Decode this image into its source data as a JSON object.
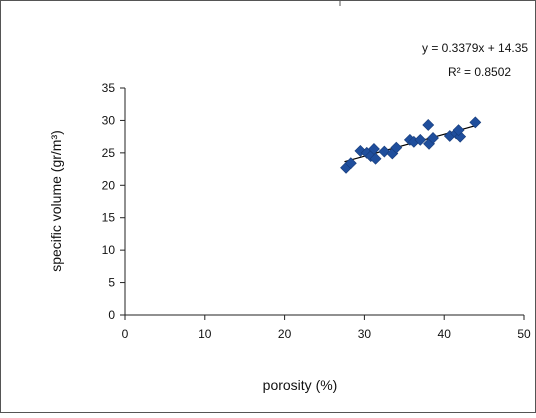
{
  "chart_data": {
    "type": "scatter",
    "title": "",
    "xlabel": "porosity (%)",
    "ylabel": "specific volume (gr/m³)",
    "xlim": [
      0,
      50
    ],
    "ylim": [
      0,
      35
    ],
    "x_ticks": [
      0,
      10,
      20,
      30,
      40,
      50
    ],
    "y_ticks": [
      0,
      5,
      10,
      15,
      20,
      25,
      30,
      35
    ],
    "grid": false,
    "legend": "none",
    "marker": "diamond",
    "marker_color": "#1F4E9C",
    "trendline_color": "#000000",
    "equation_label": "y = 0.3379x + 14.35",
    "r2_label": "R² = 0.8502",
    "trendline": {
      "slope": 0.3379,
      "intercept": 14.35,
      "x_range": [
        27.5,
        44
      ]
    },
    "points": [
      {
        "x": 27.7,
        "y": 22.7
      },
      {
        "x": 28.3,
        "y": 23.4
      },
      {
        "x": 29.5,
        "y": 25.3
      },
      {
        "x": 30.3,
        "y": 25.0
      },
      {
        "x": 30.8,
        "y": 24.5
      },
      {
        "x": 31.2,
        "y": 25.6
      },
      {
        "x": 31.4,
        "y": 24.1
      },
      {
        "x": 32.5,
        "y": 25.2
      },
      {
        "x": 33.5,
        "y": 24.9
      },
      {
        "x": 34.0,
        "y": 25.8
      },
      {
        "x": 35.7,
        "y": 27.0
      },
      {
        "x": 36.2,
        "y": 26.7
      },
      {
        "x": 37.0,
        "y": 27.0
      },
      {
        "x": 38.0,
        "y": 29.3
      },
      {
        "x": 38.1,
        "y": 26.4
      },
      {
        "x": 38.6,
        "y": 27.3
      },
      {
        "x": 40.7,
        "y": 27.6
      },
      {
        "x": 41.5,
        "y": 28.0
      },
      {
        "x": 42.0,
        "y": 27.5
      },
      {
        "x": 41.8,
        "y": 28.5
      },
      {
        "x": 43.9,
        "y": 29.7
      }
    ]
  }
}
